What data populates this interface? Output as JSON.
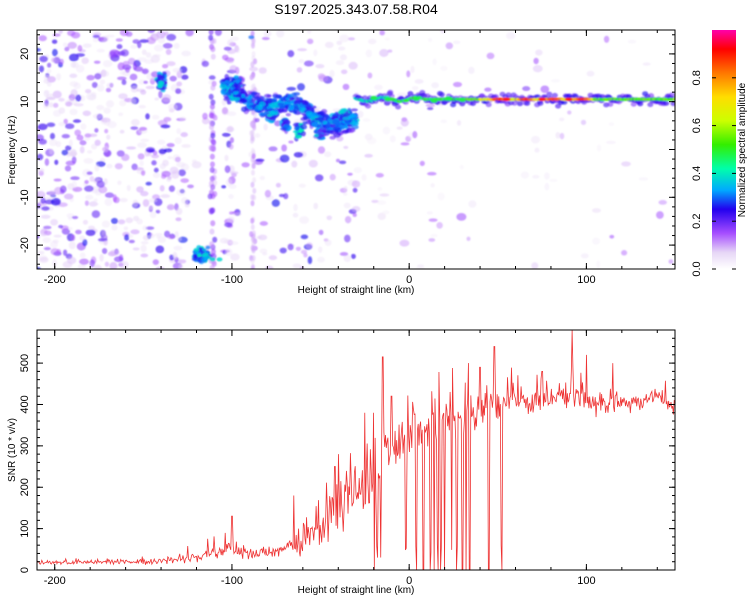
{
  "title": "S197.2025.343.07.58.R04",
  "chart_data": [
    {
      "type": "heatmap",
      "name": "spectrogram",
      "xlabel": "Height of straight line (km)",
      "ylabel": "Frequency (Hz)",
      "xlim": [
        -210,
        150
      ],
      "ylim": [
        -25,
        25
      ],
      "xticks": [
        -200,
        -100,
        0,
        100
      ],
      "yticks": [
        -20,
        -10,
        0,
        10,
        20
      ],
      "colorbar": {
        "label": "Normalized spectral amplitude",
        "range": [
          0,
          1
        ],
        "ticks": [
          0.0,
          0.2,
          0.4,
          0.6,
          0.8
        ],
        "tick_labels": [
          "0.0",
          "0.2",
          "0.4",
          "0.6",
          "0.8"
        ]
      },
      "features": [
        {
          "desc": "dominant tonal line",
          "x_range": [
            -30,
            150
          ],
          "frequency": 10.5,
          "peak_amplitude": 0.95
        },
        {
          "desc": "descending branch",
          "x_range": [
            -105,
            -30
          ],
          "frequency_start": 12,
          "frequency_end": 5
        },
        {
          "desc": "burst",
          "x": -140,
          "frequency": 14
        },
        {
          "desc": "burst",
          "x": -117,
          "frequency": -22
        }
      ]
    },
    {
      "type": "line",
      "name": "snr",
      "xlabel": "Height of straight line (km)",
      "ylabel": "SNR (10 * v/v)",
      "xlim": [
        -210,
        150
      ],
      "ylim": [
        0,
        580
      ],
      "xticks": [
        -200,
        -100,
        0,
        100
      ],
      "yticks": [
        0,
        100,
        200,
        300,
        400,
        500
      ],
      "color": "#ee3333",
      "x": [
        -210,
        -190,
        -170,
        -150,
        -130,
        -120,
        -110,
        -100,
        -90,
        -80,
        -70,
        -60,
        -50,
        -40,
        -30,
        -20,
        -10,
        0,
        10,
        20,
        30,
        40,
        50,
        60,
        70,
        80,
        90,
        100,
        110,
        120,
        130,
        140,
        150
      ],
      "values": [
        18,
        18,
        19,
        20,
        25,
        30,
        40,
        55,
        40,
        40,
        50,
        60,
        100,
        150,
        200,
        230,
        280,
        330,
        350,
        360,
        370,
        380,
        400,
        410,
        400,
        410,
        420,
        410,
        400,
        400,
        405,
        410,
        405
      ],
      "noise_amplitude": [
        6,
        6,
        7,
        8,
        12,
        15,
        25,
        30,
        20,
        20,
        25,
        35,
        60,
        80,
        100,
        120,
        100,
        80,
        90,
        80,
        70,
        60,
        50,
        40,
        40,
        40,
        50,
        40,
        30,
        30,
        30,
        30,
        30
      ]
    }
  ]
}
